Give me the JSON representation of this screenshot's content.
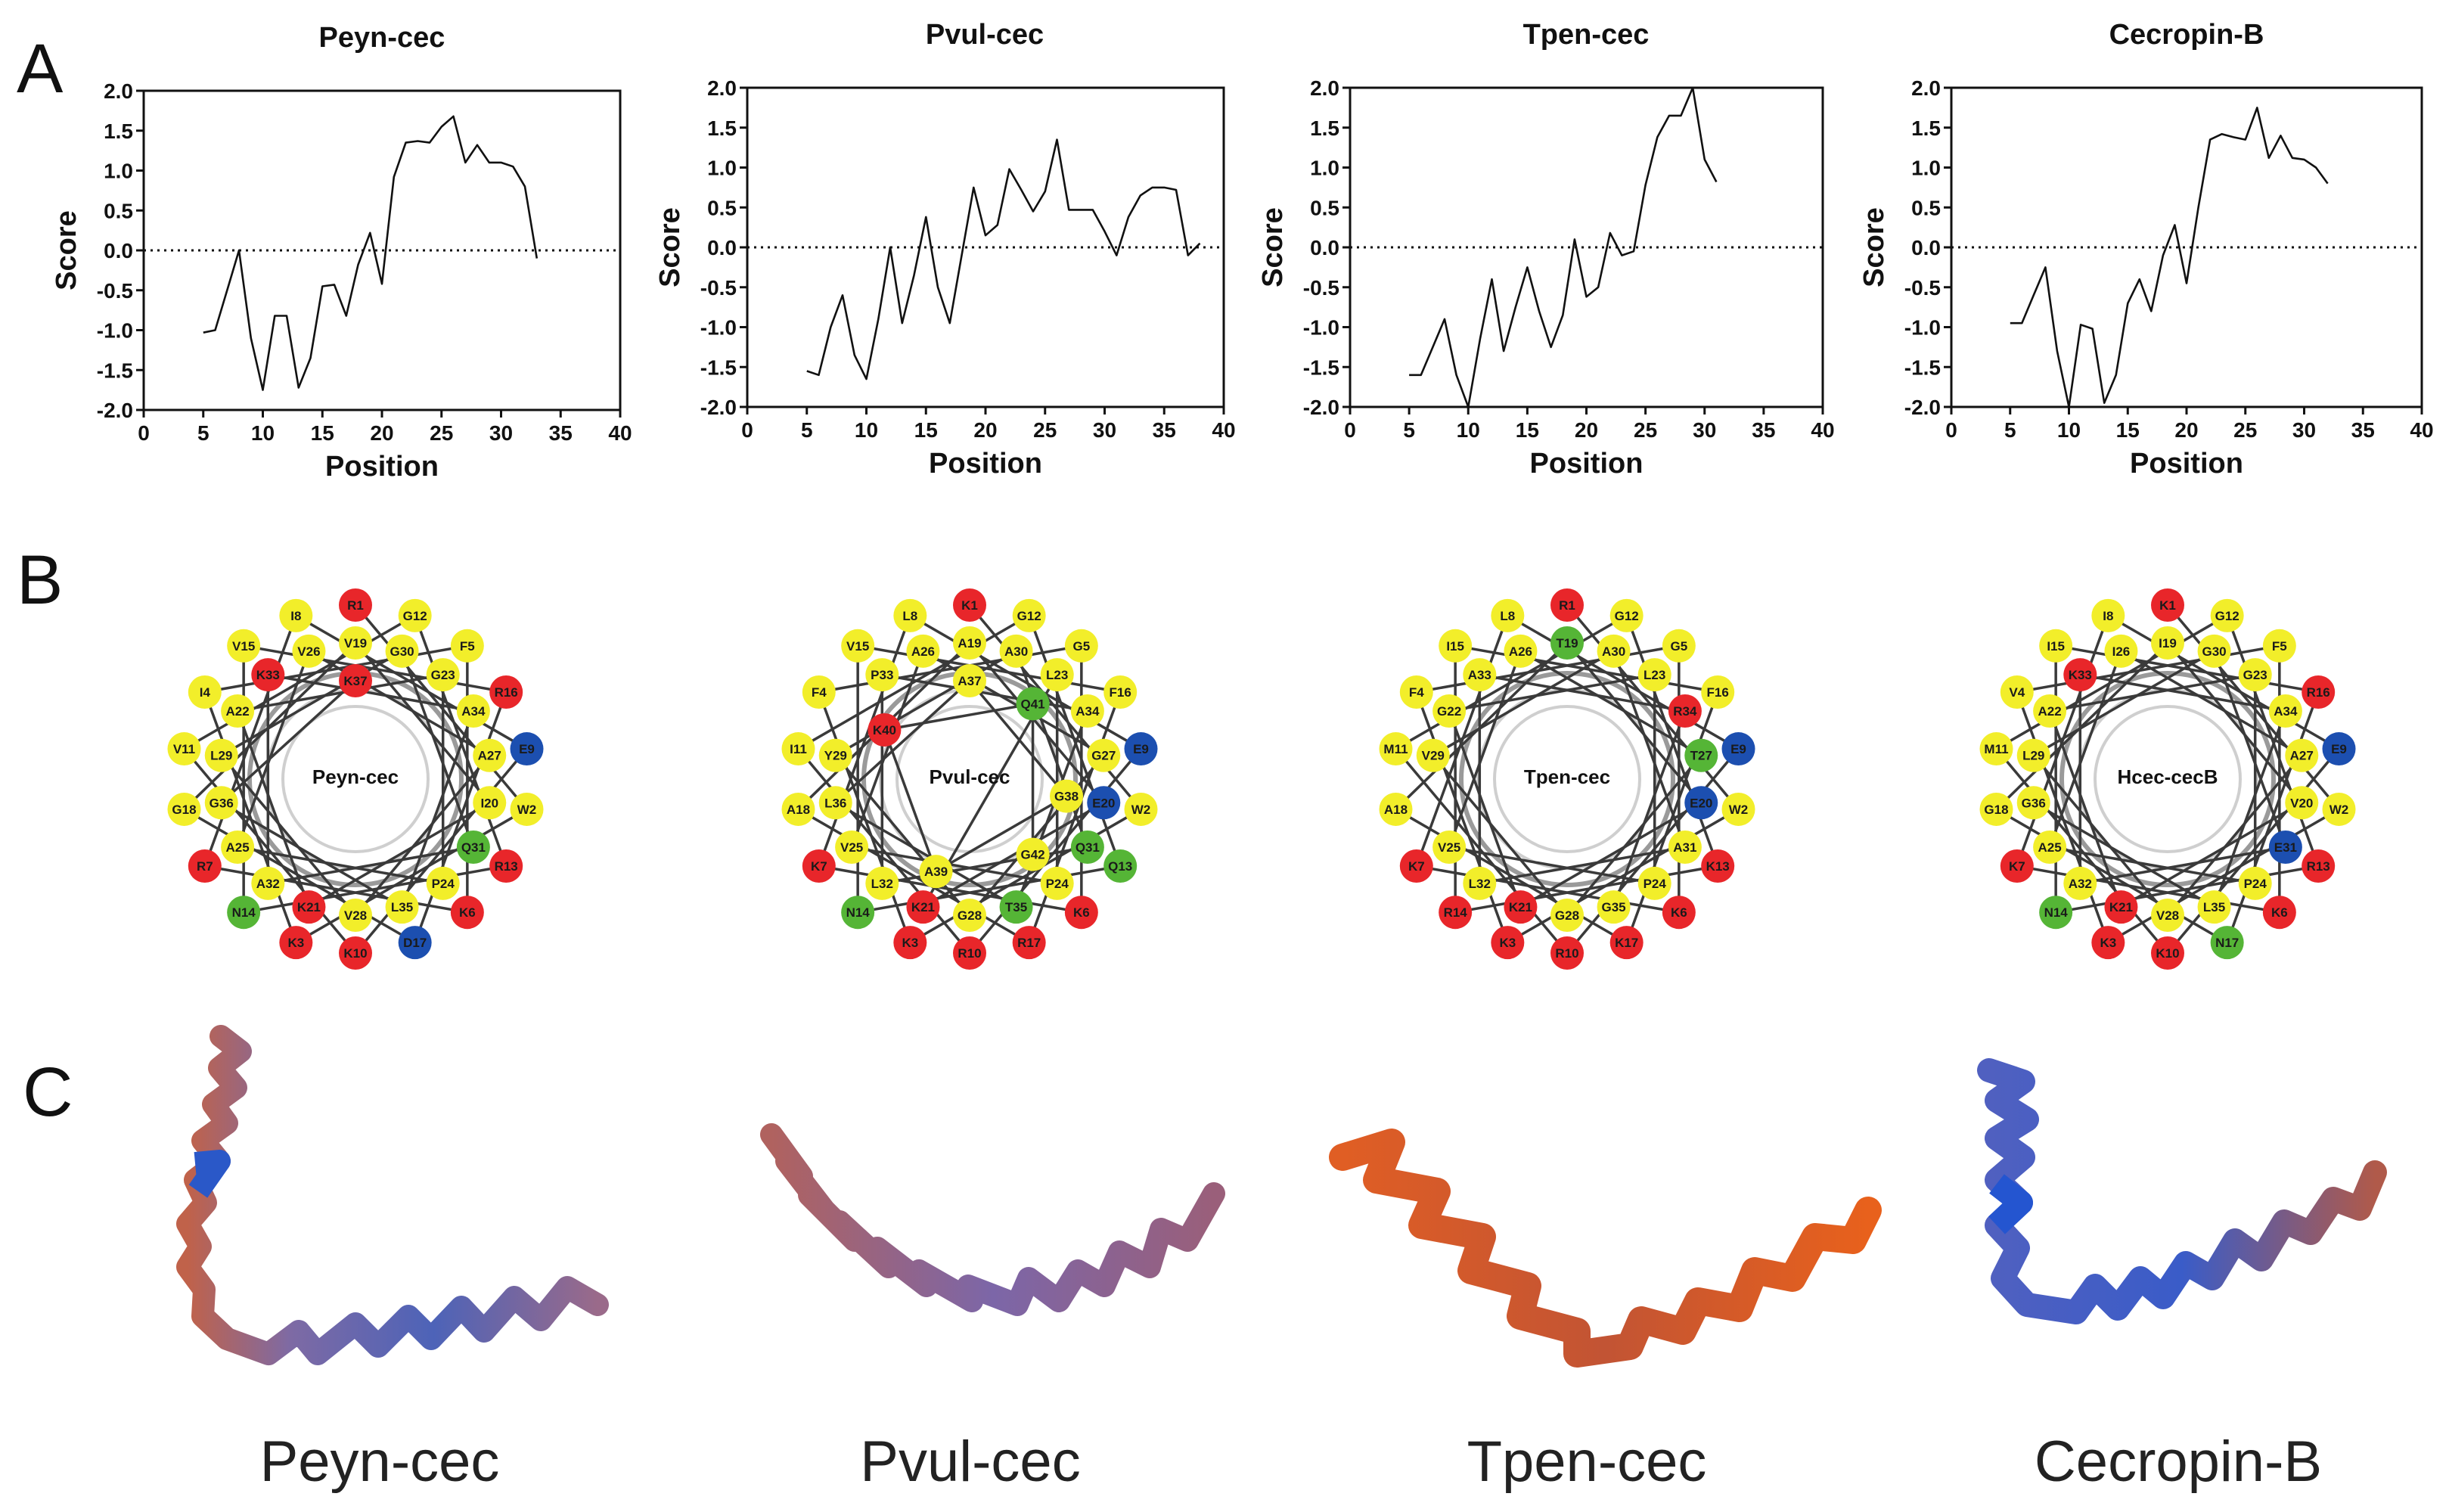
{
  "panel_labels": {
    "a": "A",
    "b": "B",
    "c": "C"
  },
  "colors": {
    "hydrophobic": "#f2ee2a",
    "basic": "#e8262a",
    "acidic": "#1c4fb0",
    "polar": "#55b536"
  },
  "chart_data": [
    {
      "type": "line",
      "title": "Peyn-cec",
      "xlabel": "Position",
      "ylabel": "Score",
      "xlim": [
        0,
        40
      ],
      "ylim": [
        -2,
        2
      ],
      "xticks": [
        "0",
        "5",
        "10",
        "15",
        "20",
        "25",
        "30",
        "35",
        "40"
      ],
      "yticks": [
        "2.0",
        "1.5",
        "1.0",
        "0.5",
        "0.0",
        "-0.5",
        "-1.0",
        "-1.5",
        "-2.0"
      ],
      "x": [
        5,
        6,
        7,
        8,
        9,
        10,
        11,
        12,
        13,
        14,
        15,
        16,
        17,
        18,
        19,
        20,
        21,
        22,
        23,
        24,
        25,
        26,
        27,
        28,
        29,
        30,
        31,
        32,
        33
      ],
      "y": [
        -1.03,
        -1.0,
        -0.5,
        0.0,
        -1.1,
        -1.75,
        -0.82,
        -0.82,
        -1.72,
        -1.35,
        -0.45,
        -0.43,
        -0.82,
        -0.18,
        0.22,
        -0.42,
        0.92,
        1.35,
        1.37,
        1.35,
        1.55,
        1.68,
        1.1,
        1.32,
        1.1,
        1.1,
        1.05,
        0.8,
        -0.1
      ]
    },
    {
      "type": "line",
      "title": "Pvul-cec",
      "xlabel": "Position",
      "ylabel": "Score",
      "xlim": [
        0,
        40
      ],
      "ylim": [
        -2,
        2
      ],
      "xticks": [
        "0",
        "5",
        "10",
        "15",
        "20",
        "25",
        "30",
        "35",
        "40"
      ],
      "yticks": [
        "2.0",
        "1.5",
        "1.0",
        "0.5",
        "0.0",
        "-0.5",
        "-1.0",
        "-1.5",
        "-2.0"
      ],
      "x": [
        5,
        6,
        7,
        8,
        9,
        10,
        11,
        12,
        13,
        14,
        15,
        16,
        17,
        18,
        19,
        20,
        21,
        22,
        23,
        24,
        25,
        26,
        27,
        28,
        29,
        30,
        31,
        32,
        33,
        34,
        35,
        36,
        37,
        38
      ],
      "y": [
        -1.55,
        -1.6,
        -1.0,
        -0.6,
        -1.35,
        -1.65,
        -0.9,
        0.0,
        -0.95,
        -0.35,
        0.38,
        -0.5,
        -0.95,
        -0.1,
        0.75,
        0.15,
        0.28,
        0.98,
        0.72,
        0.45,
        0.7,
        1.35,
        0.47,
        0.47,
        0.47,
        0.2,
        -0.1,
        0.38,
        0.65,
        0.75,
        0.75,
        0.72,
        -0.1,
        0.05
      ]
    },
    {
      "type": "line",
      "title": "Tpen-cec",
      "xlabel": "Position",
      "ylabel": "Score",
      "xlim": [
        0,
        40
      ],
      "ylim": [
        -2,
        2
      ],
      "xticks": [
        "0",
        "5",
        "10",
        "15",
        "20",
        "25",
        "30",
        "35",
        "40"
      ],
      "yticks": [
        "2.0",
        "1.5",
        "1.0",
        "0.5",
        "0.0",
        "-0.5",
        "-1.0",
        "-1.5",
        "-2.0"
      ],
      "x": [
        5,
        6,
        7,
        8,
        9,
        10,
        11,
        12,
        13,
        14,
        15,
        16,
        17,
        18,
        19,
        20,
        21,
        22,
        23,
        24,
        25,
        26,
        27,
        28,
        29,
        30,
        31
      ],
      "y": [
        -1.6,
        -1.6,
        -1.25,
        -0.9,
        -1.6,
        -2.05,
        -1.15,
        -0.4,
        -1.3,
        -0.75,
        -0.25,
        -0.8,
        -1.25,
        -0.85,
        0.1,
        -0.62,
        -0.5,
        0.18,
        -0.1,
        -0.05,
        0.78,
        1.38,
        1.65,
        1.65,
        2.05,
        1.1,
        0.82
      ]
    },
    {
      "type": "line",
      "title": "Cecropin-B",
      "xlabel": "Position",
      "ylabel": "Score",
      "xlim": [
        0,
        40
      ],
      "ylim": [
        -2,
        2
      ],
      "xticks": [
        "0",
        "5",
        "10",
        "15",
        "20",
        "25",
        "30",
        "35",
        "40"
      ],
      "yticks": [
        "2.0",
        "1.5",
        "1.0",
        "0.5",
        "0.0",
        "-0.5",
        "-1.0",
        "-1.5",
        "-2.0"
      ],
      "x": [
        5,
        6,
        7,
        8,
        9,
        10,
        11,
        12,
        13,
        14,
        15,
        16,
        17,
        18,
        19,
        20,
        21,
        22,
        23,
        24,
        25,
        26,
        27,
        28,
        29,
        30,
        31,
        32
      ],
      "y": [
        -0.95,
        -0.95,
        -0.6,
        -0.25,
        -1.3,
        -2.0,
        -0.97,
        -1.02,
        -1.95,
        -1.6,
        -0.7,
        -0.4,
        -0.8,
        -0.1,
        0.28,
        -0.45,
        0.5,
        1.35,
        1.42,
        1.38,
        1.35,
        1.75,
        1.12,
        1.4,
        1.12,
        1.1,
        1.0,
        0.8
      ]
    }
  ],
  "wheels": [
    {
      "title": "Peyn-cec",
      "residues": [
        "R1",
        "W2",
        "K3",
        "I4",
        "F5",
        "K6",
        "R7",
        "I8",
        "E9",
        "K10",
        "V11",
        "G12",
        "R13",
        "N14",
        "V15",
        "R16",
        "D17",
        "G18",
        "V19",
        "I20",
        "K21",
        "A22",
        "G23",
        "P24",
        "A25",
        "V26",
        "A27",
        "V28",
        "L29",
        "G30",
        "Q31",
        "A32",
        "K33",
        "A34",
        "L35",
        "G36",
        "K37"
      ]
    },
    {
      "title": "Pvul-cec",
      "residues": [
        "K1",
        "W2",
        "K3",
        "F4",
        "G5",
        "K6",
        "K7",
        "L8",
        "E9",
        "R10",
        "I11",
        "G12",
        "Q13",
        "N14",
        "V15",
        "F16",
        "R17",
        "A18",
        "A19",
        "E20",
        "K21",
        "L23",
        "P24",
        "V25",
        "A26",
        "G27",
        "G28",
        "Y29",
        "A30",
        "Q31",
        "L32",
        "P33",
        "A34",
        "T35",
        "L36",
        "A37",
        "G38",
        "A39",
        "K40",
        "Q41",
        "G42"
      ]
    },
    {
      "title": "Tpen-cec",
      "residues": [
        "R1",
        "W2",
        "K3",
        "F4",
        "G5",
        "K6",
        "K7",
        "L8",
        "E9",
        "R10",
        "M11",
        "G12",
        "K13",
        "R14",
        "I15",
        "F16",
        "K17",
        "A18",
        "T19",
        "E20",
        "K21",
        "G22",
        "L23",
        "P24",
        "V25",
        "A26",
        "T27",
        "G28",
        "V29",
        "A30",
        "A31",
        "L32",
        "A33",
        "R34",
        "G35"
      ]
    },
    {
      "title": "Hcec-cecB",
      "residues": [
        "K1",
        "W2",
        "K3",
        "V4",
        "F5",
        "K6",
        "K7",
        "I8",
        "E9",
        "K10",
        "M11",
        "G12",
        "R13",
        "N14",
        "I15",
        "R16",
        "N17",
        "G18",
        "I19",
        "V20",
        "K21",
        "A22",
        "G23",
        "P24",
        "A25",
        "I26",
        "A27",
        "V28",
        "L29",
        "G30",
        "E31",
        "A32",
        "K33",
        "A34",
        "L35",
        "G36"
      ]
    }
  ],
  "structures": [
    "Peyn-cec",
    "Pvul-cec",
    "Tpen-cec",
    "Cecropin-B"
  ]
}
